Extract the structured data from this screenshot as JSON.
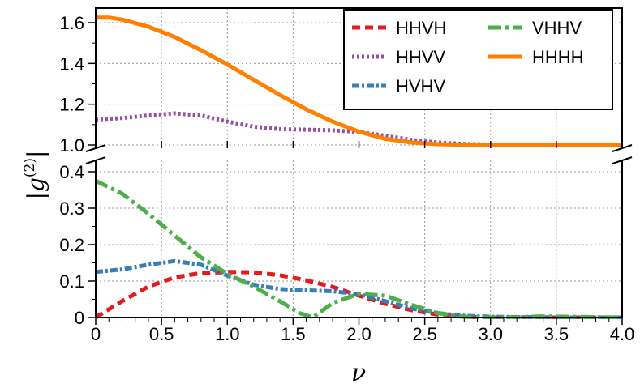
{
  "chart_data": {
    "type": "line",
    "xlabel": "ν",
    "ylabel": "|g(2)|",
    "xlim": [
      0,
      4
    ],
    "ylim_lower": [
      0,
      0.4
    ],
    "ylim_upper": [
      1.0,
      1.65
    ],
    "broken_y_axis": true,
    "grid": true,
    "legend_position": "top-right",
    "x_ticks": [
      "0",
      "0.5",
      "1.0",
      "1.5",
      "2.0",
      "2.5",
      "3.0",
      "3.5",
      "4.0"
    ],
    "y_ticks_lower": [
      "0",
      "0.1",
      "0.2",
      "0.3",
      "0.4"
    ],
    "y_ticks_upper": [
      "1.0",
      "1.2",
      "1.4",
      "1.6"
    ],
    "series": [
      {
        "name": "HHVH",
        "color": "#e41a1c",
        "dash": "dashed",
        "x": [
          0,
          0.2,
          0.4,
          0.6,
          0.8,
          1.0,
          1.2,
          1.4,
          1.6,
          1.8,
          2.0,
          2.2,
          2.4,
          2.6,
          2.8,
          3.0,
          3.2,
          3.4,
          3.6,
          3.8,
          4.0
        ],
        "y": [
          0,
          0.045,
          0.085,
          0.11,
          0.122,
          0.125,
          0.124,
          0.116,
          0.102,
          0.084,
          0.06,
          0.038,
          0.02,
          0.008,
          0.002,
          0,
          0,
          0,
          0,
          0,
          0
        ]
      },
      {
        "name": "HHVV",
        "color": "#984ea3",
        "dash": "dotted",
        "x": [
          0,
          0.2,
          0.4,
          0.6,
          0.8,
          1.0,
          1.2,
          1.4,
          1.6,
          1.8,
          2.0,
          2.2,
          2.4,
          2.6,
          2.8,
          3.0,
          3.5,
          4.0
        ],
        "y": [
          1.125,
          1.132,
          1.145,
          1.155,
          1.145,
          1.115,
          1.09,
          1.078,
          1.075,
          1.072,
          1.064,
          1.045,
          1.025,
          1.012,
          1.005,
          1.002,
          1.0,
          1.0
        ]
      },
      {
        "name": "HVHV",
        "color": "#377eb8",
        "dash": "dashdot",
        "x": [
          0,
          0.2,
          0.4,
          0.6,
          0.8,
          1.0,
          1.2,
          1.4,
          1.6,
          1.8,
          2.0,
          2.2,
          2.4,
          2.6,
          2.8,
          3.0,
          3.5,
          4.0
        ],
        "y": [
          0.125,
          0.132,
          0.145,
          0.155,
          0.145,
          0.115,
          0.09,
          0.078,
          0.075,
          0.072,
          0.064,
          0.045,
          0.025,
          0.012,
          0.005,
          0.002,
          0,
          0
        ]
      },
      {
        "name": "VHHV",
        "color": "#4daf4a",
        "dash": "dashdotlong",
        "x": [
          0,
          0.2,
          0.4,
          0.6,
          0.8,
          1.0,
          1.2,
          1.4,
          1.55,
          1.65,
          1.8,
          2.0,
          2.2,
          2.4,
          2.6,
          2.8,
          3.0,
          3.2,
          3.4,
          3.6,
          3.8,
          4.0
        ],
        "y": [
          0.375,
          0.34,
          0.285,
          0.225,
          0.165,
          0.12,
          0.085,
          0.045,
          0.012,
          0.0,
          0.04,
          0.065,
          0.06,
          0.035,
          0.012,
          0.002,
          0.0,
          0.001,
          0.003,
          0.002,
          0.001,
          0.0
        ]
      },
      {
        "name": "HHHH",
        "color": "#ff7f00",
        "dash": "solid",
        "x": [
          0,
          0.1,
          0.2,
          0.4,
          0.6,
          0.8,
          1.0,
          1.2,
          1.4,
          1.6,
          1.8,
          2.0,
          2.2,
          2.4,
          2.6,
          2.8,
          3.0,
          3.5,
          4.0
        ],
        "y": [
          1.625,
          1.625,
          1.615,
          1.58,
          1.53,
          1.465,
          1.395,
          1.32,
          1.245,
          1.175,
          1.115,
          1.065,
          1.03,
          1.012,
          1.004,
          1.001,
          1.0,
          1.0,
          1.0
        ]
      }
    ]
  }
}
